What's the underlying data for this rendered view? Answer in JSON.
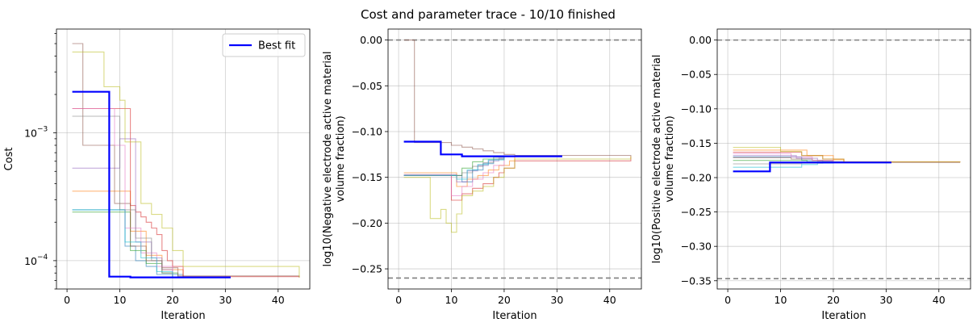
{
  "title": "Cost and parameter trace - 10/10 finished",
  "colors": {
    "best": "#0000ff",
    "bound": "#808080",
    "traces": [
      "#1f77b4",
      "#ff7f0e",
      "#2ca02c",
      "#d62728",
      "#9467bd",
      "#8c564b",
      "#e377c2",
      "#7f7f7f",
      "#bcbd22",
      "#17becf"
    ]
  },
  "chart_data": [
    {
      "type": "line",
      "xlabel": "Iteration",
      "ylabel": "Cost",
      "yscale": "log",
      "xlim": [
        -2,
        46
      ],
      "ylim": [
        6e-05,
        0.0065
      ],
      "xticks": [
        0,
        10,
        20,
        30,
        40
      ],
      "yticks": [
        {
          "value": 0.0001,
          "label": "10",
          "exp": "−4"
        },
        {
          "value": 0.001,
          "label": "10",
          "exp": "−3"
        }
      ],
      "grid": true,
      "legend": {
        "position": "top-right",
        "label": "Best fit"
      },
      "best": {
        "x": [
          1,
          8,
          8,
          12,
          12,
          31
        ],
        "y": [
          0.0021,
          0.0021,
          7.5e-05,
          7.5e-05,
          7.4e-05,
          7.4e-05
        ]
      },
      "traces": [
        {
          "x": [
            1,
            9,
            11,
            13,
            15,
            17,
            22
          ],
          "y": [
            0.00025,
            0.00025,
            0.00013,
            0.0001,
            9e-05,
            7.8e-05,
            7.4e-05
          ]
        },
        {
          "x": [
            1,
            10,
            12,
            15,
            18,
            22
          ],
          "y": [
            0.00035,
            0.00035,
            0.00017,
            0.00011,
            8.5e-05,
            7.4e-05
          ]
        },
        {
          "x": [
            1,
            10,
            12,
            15,
            18,
            21
          ],
          "y": [
            0.00024,
            0.00024,
            0.00012,
            9.5e-05,
            8e-05,
            7.4e-05
          ]
        },
        {
          "x": [
            1,
            10,
            12,
            13,
            14,
            15,
            16,
            17,
            18,
            19,
            20,
            22,
            44
          ],
          "y": [
            0.00155,
            0.00155,
            0.00027,
            0.00024,
            0.00022,
            0.0002,
            0.00018,
            0.00016,
            0.00012,
            0.0001,
            9e-05,
            7.5e-05,
            7.4e-05
          ]
        },
        {
          "x": [
            1,
            9,
            10,
            13,
            16,
            18,
            20
          ],
          "y": [
            0.00053,
            0.00053,
            0.0009,
            0.00014,
            0.000105,
            8.5e-05,
            7.4e-05
          ]
        },
        {
          "x": [
            1,
            2,
            3,
            8,
            9,
            12,
            15,
            18,
            21,
            44
          ],
          "y": [
            0.005,
            0.005,
            0.0008,
            0.0008,
            0.00028,
            0.00013,
            0.0001,
            8.8e-05,
            7.6e-05,
            7.4e-05
          ]
        },
        {
          "x": [
            1,
            8,
            9,
            11,
            14,
            17,
            20
          ],
          "y": [
            0.00155,
            0.00155,
            0.0008,
            0.00018,
            0.000115,
            9e-05,
            7.4e-05
          ]
        },
        {
          "x": [
            1,
            8,
            10,
            13,
            16,
            18,
            20
          ],
          "y": [
            0.00135,
            0.00135,
            0.00025,
            0.00015,
            0.0001,
            8e-05,
            7.4e-05
          ]
        },
        {
          "x": [
            1,
            6,
            7,
            10,
            11,
            14,
            16,
            18,
            20,
            22,
            44
          ],
          "y": [
            0.0043,
            0.0043,
            0.0023,
            0.0018,
            0.00085,
            0.00028,
            0.00023,
            0.00018,
            0.00012,
            9e-05,
            7.4e-05
          ]
        },
        {
          "x": [
            1,
            10,
            11,
            14,
            17,
            20
          ],
          "y": [
            0.00025,
            0.00025,
            0.00014,
            0.000105,
            8.2e-05,
            7.4e-05
          ]
        }
      ]
    },
    {
      "type": "line",
      "xlabel": "Iteration",
      "ylabel_lines": [
        "log10(Negative electrode active material",
        "volume fraction)"
      ],
      "xlim": [
        -2,
        46
      ],
      "ylim": [
        -0.272,
        0.012
      ],
      "xticks": [
        0,
        10,
        20,
        30,
        40
      ],
      "yticks": [
        0.0,
        -0.05,
        -0.1,
        -0.15,
        -0.2,
        -0.25
      ],
      "ytick_labels": [
        "0.00",
        "−0.05",
        "−0.10",
        "−0.15",
        "−0.20",
        "−0.25"
      ],
      "grid": true,
      "bounds": [
        0.0,
        -0.26
      ],
      "best": {
        "x": [
          1,
          8,
          8,
          12,
          12,
          31
        ],
        "y": [
          -0.111,
          -0.111,
          -0.125,
          -0.125,
          -0.127,
          -0.127
        ]
      },
      "traces": [
        {
          "x": [
            1,
            10,
            12,
            14,
            16,
            18,
            20
          ],
          "y": [
            -0.148,
            -0.148,
            -0.155,
            -0.142,
            -0.135,
            -0.13,
            -0.127
          ]
        },
        {
          "x": [
            1,
            9,
            11,
            13,
            15,
            17,
            19,
            21,
            22
          ],
          "y": [
            -0.145,
            -0.145,
            -0.16,
            -0.152,
            -0.148,
            -0.142,
            -0.137,
            -0.132,
            -0.127
          ]
        },
        {
          "x": [
            1,
            10,
            12,
            14,
            16,
            18,
            20
          ],
          "y": [
            -0.148,
            -0.148,
            -0.14,
            -0.133,
            -0.13,
            -0.128,
            -0.127
          ]
        },
        {
          "x": [
            1,
            8,
            10,
            12,
            14,
            16,
            18,
            19,
            20,
            22,
            44
          ],
          "y": [
            -0.148,
            -0.148,
            -0.175,
            -0.168,
            -0.162,
            -0.157,
            -0.15,
            -0.145,
            -0.14,
            -0.132,
            -0.127
          ]
        },
        {
          "x": [
            1,
            9,
            11,
            13,
            15,
            17,
            19,
            20
          ],
          "y": [
            -0.147,
            -0.147,
            -0.155,
            -0.143,
            -0.137,
            -0.132,
            -0.129,
            -0.127
          ]
        },
        {
          "x": [
            1,
            2,
            3,
            8,
            10,
            12,
            14,
            16,
            18,
            20,
            22,
            44
          ],
          "y": [
            0.0,
            0.0,
            -0.112,
            -0.112,
            -0.115,
            -0.117,
            -0.119,
            -0.121,
            -0.123,
            -0.125,
            -0.126,
            -0.127
          ]
        },
        {
          "x": [
            1,
            8,
            10,
            12,
            14,
            16,
            18,
            20
          ],
          "y": [
            -0.148,
            -0.148,
            -0.17,
            -0.16,
            -0.152,
            -0.145,
            -0.137,
            -0.127
          ]
        },
        {
          "x": [
            1,
            10,
            12,
            14,
            16,
            18,
            20
          ],
          "y": [
            -0.148,
            -0.148,
            -0.145,
            -0.138,
            -0.134,
            -0.13,
            -0.127
          ]
        },
        {
          "x": [
            1,
            4,
            6,
            8,
            9,
            10,
            11,
            12,
            14,
            16,
            18,
            20,
            22,
            44
          ],
          "y": [
            -0.15,
            -0.15,
            -0.195,
            -0.185,
            -0.2,
            -0.21,
            -0.19,
            -0.17,
            -0.165,
            -0.16,
            -0.15,
            -0.14,
            -0.13,
            -0.127
          ]
        },
        {
          "x": [
            1,
            9,
            11,
            13,
            15,
            17,
            20
          ],
          "y": [
            -0.148,
            -0.148,
            -0.152,
            -0.142,
            -0.136,
            -0.131,
            -0.127
          ]
        }
      ]
    },
    {
      "type": "line",
      "xlabel": "Iteration",
      "ylabel_lines": [
        "log10(Positive electrode active material",
        "volume fraction)"
      ],
      "xlim": [
        -2,
        46
      ],
      "ylim": [
        -0.362,
        0.016
      ],
      "xticks": [
        0,
        10,
        20,
        30,
        40
      ],
      "yticks": [
        0.0,
        -0.05,
        -0.1,
        -0.15,
        -0.2,
        -0.25,
        -0.3,
        -0.35
      ],
      "ytick_labels": [
        "0.00",
        "−0.05",
        "−0.10",
        "−0.15",
        "−0.20",
        "−0.25",
        "−0.30",
        "−0.35"
      ],
      "grid": true,
      "bounds": [
        0.0,
        -0.347
      ],
      "best": {
        "x": [
          1,
          8,
          8,
          31
        ],
        "y": [
          -0.191,
          -0.191,
          -0.178,
          -0.178
        ]
      },
      "traces": [
        {
          "x": [
            1,
            10,
            14,
            18,
            22
          ],
          "y": [
            -0.17,
            -0.17,
            -0.175,
            -0.177,
            -0.178
          ]
        },
        {
          "x": [
            1,
            10,
            15,
            20,
            22
          ],
          "y": [
            -0.16,
            -0.16,
            -0.168,
            -0.174,
            -0.178
          ]
        },
        {
          "x": [
            1,
            10,
            15,
            20,
            21
          ],
          "y": [
            -0.175,
            -0.175,
            -0.177,
            -0.178,
            -0.178
          ]
        },
        {
          "x": [
            1,
            10,
            14,
            18,
            22,
            44
          ],
          "y": [
            -0.163,
            -0.163,
            -0.168,
            -0.173,
            -0.177,
            -0.178
          ]
        },
        {
          "x": [
            1,
            9,
            13,
            17,
            20
          ],
          "y": [
            -0.168,
            -0.168,
            -0.172,
            -0.176,
            -0.178
          ]
        },
        {
          "x": [
            1,
            8,
            12,
            16,
            20,
            22,
            44
          ],
          "y": [
            -0.171,
            -0.171,
            -0.173,
            -0.175,
            -0.177,
            -0.178,
            -0.178
          ]
        },
        {
          "x": [
            1,
            8,
            12,
            16,
            20
          ],
          "y": [
            -0.165,
            -0.165,
            -0.17,
            -0.175,
            -0.178
          ]
        },
        {
          "x": [
            1,
            10,
            14,
            18,
            20
          ],
          "y": [
            -0.18,
            -0.18,
            -0.179,
            -0.178,
            -0.178
          ]
        },
        {
          "x": [
            1,
            6,
            10,
            14,
            18,
            22,
            44
          ],
          "y": [
            -0.156,
            -0.156,
            -0.162,
            -0.168,
            -0.173,
            -0.177,
            -0.178
          ]
        },
        {
          "x": [
            1,
            10,
            14,
            17,
            20
          ],
          "y": [
            -0.185,
            -0.185,
            -0.181,
            -0.179,
            -0.178
          ]
        }
      ]
    }
  ]
}
